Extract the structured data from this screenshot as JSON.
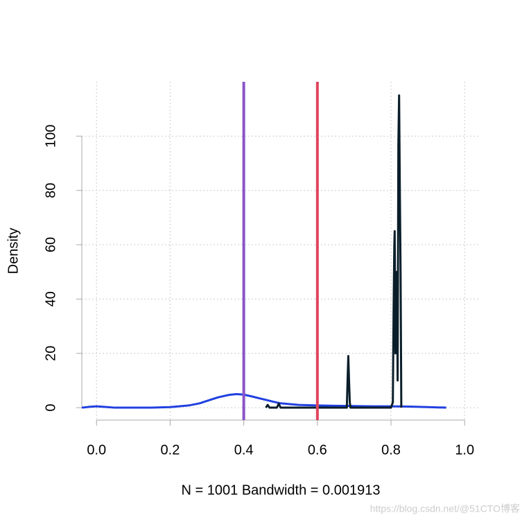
{
  "chart_data": {
    "type": "line",
    "xlabel": "N = 1001   Bandwidth = 0.001913",
    "ylabel": "Density",
    "xlim": [
      -0.04,
      1.041
    ],
    "ylim": [
      -5.6,
      120
    ],
    "xticks": [
      {
        "value": 0,
        "label": "0.0"
      },
      {
        "value": 0.2,
        "label": "0.2"
      },
      {
        "value": 0.4,
        "label": "0.4"
      },
      {
        "value": 0.6,
        "label": "0.6"
      },
      {
        "value": 0.8,
        "label": "0.8"
      },
      {
        "value": 1,
        "label": "1.0"
      }
    ],
    "yticks": [
      0,
      20,
      40,
      60,
      80,
      100
    ],
    "grid": true,
    "series": [
      {
        "color": "#2040e0",
        "x": [
          -0.04,
          -0.02,
          0,
          0.02,
          0.05,
          0.1,
          0.15,
          0.2,
          0.25,
          0.28,
          0.3,
          0.33,
          0.36,
          0.38,
          0.4,
          0.42,
          0.45,
          0.48,
          0.5,
          0.55,
          0.6,
          0.65,
          0.7,
          0.75,
          0.8,
          0.85,
          0.9,
          0.95
        ],
        "values": [
          0,
          0.3,
          0.5,
          0.3,
          0,
          0,
          0,
          0.2,
          0.8,
          1.6,
          2.5,
          3.8,
          4.7,
          5,
          4.8,
          4.2,
          3.2,
          2.2,
          1.6,
          1,
          0.8,
          0.7,
          0.6,
          0.5,
          0.5,
          0.4,
          0.2,
          0
        ]
      },
      {
        "color": "#0a1e2a",
        "x": [
          0.46,
          0.465,
          0.47,
          0.49,
          0.495,
          0.5,
          0.6,
          0.68,
          0.682,
          0.684,
          0.686,
          0.688,
          0.69,
          0.8,
          0.805,
          0.807,
          0.809,
          0.81,
          0.812,
          0.814,
          0.815,
          0.817,
          0.818,
          0.82,
          0.822,
          0.824,
          0.826,
          0.828
        ],
        "values": [
          0,
          1,
          0,
          0,
          1.5,
          0,
          0,
          0,
          10,
          19,
          10,
          2,
          0,
          0,
          2,
          35,
          60,
          65,
          20,
          45,
          50,
          30,
          10,
          97,
          115,
          80,
          50,
          0
        ]
      }
    ],
    "vlines": [
      {
        "x": 0.4,
        "color": "#8a55c8"
      },
      {
        "x": 0.6,
        "color": "#e0455e"
      }
    ],
    "watermark": "https://blog.csdn.net/@51CTO博客"
  }
}
